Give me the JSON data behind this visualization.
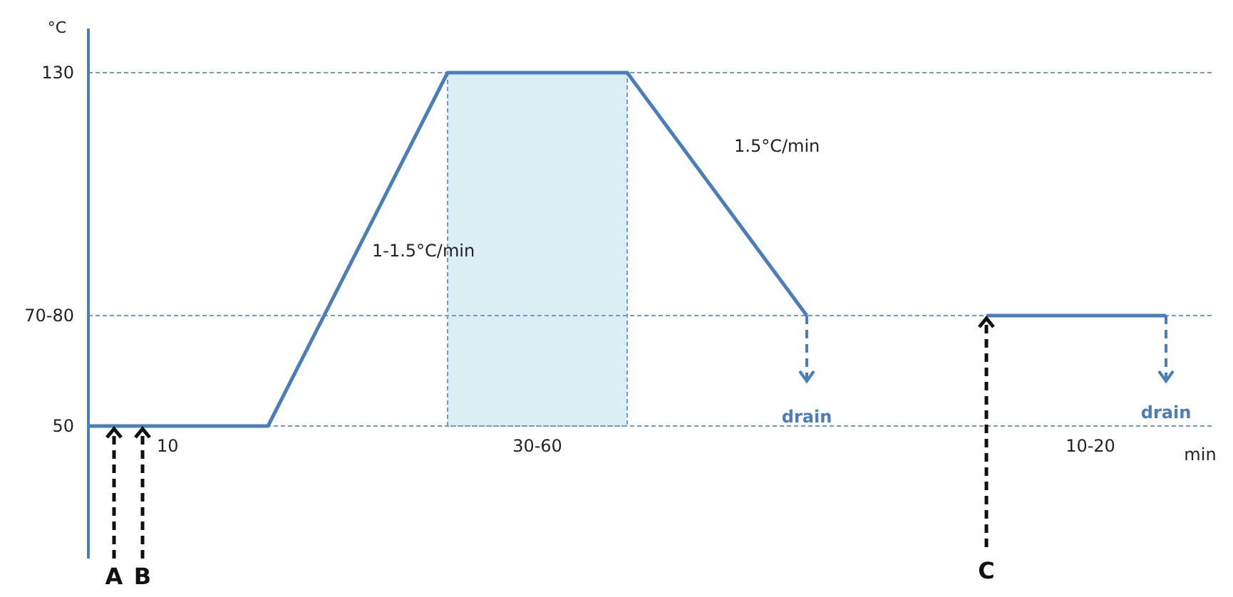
{
  "chart_data": {
    "type": "line",
    "ylabel": "°C",
    "xlabel": "min",
    "categories": [
      null,
      null,
      null,
      null,
      null,
      null,
      null
    ],
    "series": [
      {
        "color": "#4a7ebb",
        "values": [
          50,
          50,
          130,
          130,
          75,
          null,
          null
        ]
      },
      {
        "color": "#4a7ebb",
        "values": [
          null,
          null,
          null,
          null,
          null,
          75,
          75
        ]
      }
    ],
    "ylim": [
      20,
      140
    ],
    "yticks": [
      50,
      {
        "value": 75,
        "label": "70-80"
      },
      130
    ],
    "grid": "y",
    "tick_labels": "y",
    "marker": "none",
    "line_style": "solid",
    "annotations": [
      "10",
      "30-60",
      "10-20",
      "1-1.5°C/min",
      "1.5°C/min",
      "drain",
      "drain",
      "A",
      "B",
      "C"
    ]
  }
}
